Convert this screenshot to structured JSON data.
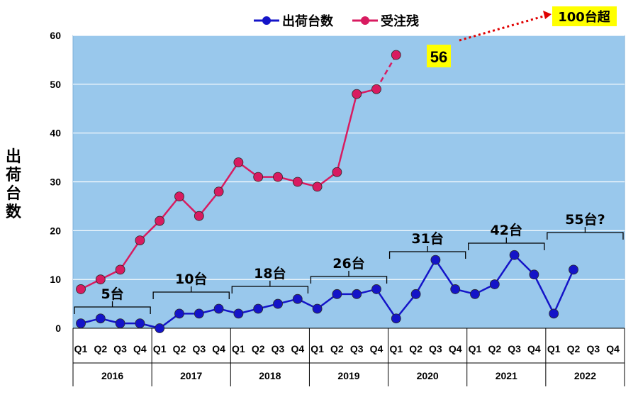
{
  "chart_data": {
    "type": "line",
    "ylim": [
      0,
      60
    ],
    "yticks": [
      0,
      10,
      20,
      30,
      40,
      50,
      60
    ],
    "ylabel": "出荷台数",
    "categories": [
      "Q1",
      "Q2",
      "Q3",
      "Q4",
      "Q1",
      "Q2",
      "Q3",
      "Q4",
      "Q1",
      "Q2",
      "Q3",
      "Q4",
      "Q1",
      "Q2",
      "Q3",
      "Q4",
      "Q1",
      "Q2",
      "Q3",
      "Q4",
      "Q1",
      "Q2",
      "Q3",
      "Q4",
      "Q1",
      "Q2",
      "Q3",
      "Q4"
    ],
    "years": [
      "2016",
      "2017",
      "2018",
      "2019",
      "2020",
      "2021",
      "2022"
    ],
    "grid": true,
    "legend_position": "top",
    "series": [
      {
        "name": "出荷台数",
        "color": "#1414c8",
        "values": [
          1,
          2,
          1,
          1,
          0,
          3,
          3,
          4,
          3,
          4,
          5,
          6,
          4,
          7,
          7,
          8,
          2,
          7,
          14,
          8,
          7,
          9,
          15,
          11,
          3,
          12,
          null,
          null
        ]
      },
      {
        "name": "受注残",
        "color": "#d81b60",
        "values": [
          8,
          10,
          12,
          18,
          22,
          27,
          23,
          28,
          34,
          31,
          31,
          30,
          29,
          32,
          48,
          49,
          56,
          null,
          null,
          null,
          null,
          null,
          null,
          null,
          null,
          null,
          null,
          null
        ],
        "dashed_from_index": 15
      }
    ],
    "annual_totals": [
      {
        "year": "2016",
        "label": "5台"
      },
      {
        "year": "2017",
        "label": "10台"
      },
      {
        "year": "2018",
        "label": "18台"
      },
      {
        "year": "2019",
        "label": "26台"
      },
      {
        "year": "2020",
        "label": "31台"
      },
      {
        "year": "2021",
        "label": "42台"
      },
      {
        "year": "2022",
        "label": "55台?"
      }
    ],
    "callout_value": "56",
    "callout_future": "100台超",
    "colors": {
      "plot_bg": "#99c8ec",
      "highlight": "#ffff00",
      "arrow": "#e00000"
    }
  }
}
